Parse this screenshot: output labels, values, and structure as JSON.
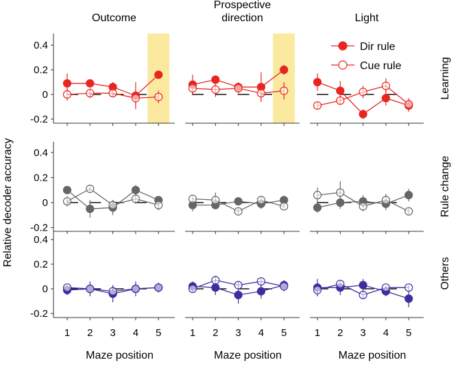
{
  "chart_data": {
    "type": "line",
    "ylabel": "Relative decoder accuracy",
    "xlabel": "Maze position",
    "x": [
      1,
      2,
      3,
      4,
      5
    ],
    "ylim": [
      -0.2,
      0.5
    ],
    "yticks": [
      "0.4",
      "0.2",
      "0",
      "-0.2"
    ],
    "ytick_values": [
      0.4,
      0.2,
      0,
      -0.2
    ],
    "xticks": [
      "1",
      "2",
      "3",
      "4",
      "5"
    ],
    "columns": [
      "Outcome",
      "Prospective direction",
      "Light"
    ],
    "column_title_lines": [
      [
        "Outcome"
      ],
      [
        "Prospective",
        "direction"
      ],
      [
        "Light"
      ]
    ],
    "rows": [
      {
        "label": "Learning",
        "color": "#e8251f"
      },
      {
        "label": "Rule change",
        "color": "#666666"
      },
      {
        "label": "Others",
        "color": "#3b2f9e"
      }
    ],
    "highlight": {
      "color": "#fbe9a0",
      "x": 5,
      "panels": [
        "Learning/Outcome",
        "Learning/Prospective direction"
      ]
    },
    "legend": {
      "placement": "top-right",
      "entries": [
        "Dir rule",
        "Cue rule"
      ]
    },
    "panels": [
      [
        {
          "dir": [
            0.09,
            0.09,
            0.06,
            -0.01,
            0.16
          ],
          "dir_err": [
            0.08,
            0.03,
            0.04,
            0.11,
            0.02
          ],
          "cue": [
            0,
            0.01,
            0.01,
            -0.03,
            -0.02
          ],
          "cue_err": [
            0.05,
            0.04,
            0.03,
            0.07,
            0.05
          ]
        },
        {
          "dir": [
            0.08,
            0.12,
            0.06,
            0.06,
            0.2
          ],
          "dir_err": [
            0.08,
            0.03,
            0.04,
            0.12,
            0.04
          ],
          "cue": [
            0.05,
            0.04,
            0.05,
            0.01,
            0.03
          ],
          "cue_err": [
            0.05,
            0.06,
            0.04,
            0.06,
            0.07
          ]
        },
        {
          "dir": [
            0.1,
            0.03,
            -0.16,
            -0.03,
            -0.09
          ],
          "dir_err": [
            0.07,
            0.08,
            0.04,
            0.06,
            0.05
          ],
          "cue": [
            -0.09,
            -0.05,
            0.02,
            0.07,
            -0.08
          ],
          "cue_err": [
            0.03,
            0.03,
            0.05,
            0.06,
            0.05
          ]
        }
      ],
      [
        {
          "dir": [
            0.1,
            -0.05,
            -0.04,
            0.1,
            0.02
          ],
          "dir_err": [
            0.03,
            0.07,
            0.06,
            0.04,
            0.03
          ],
          "cue": [
            0.01,
            0.11,
            -0.02,
            0.03,
            -0.02
          ],
          "cue_err": [
            0.04,
            0.02,
            0.04,
            0.04,
            0.04
          ]
        },
        {
          "dir": [
            -0.02,
            -0.02,
            0.01,
            -0.01,
            0.02
          ],
          "dir_err": [
            0.05,
            0.03,
            0.02,
            0.04,
            0.02
          ],
          "cue": [
            0.03,
            0.02,
            -0.07,
            0.02,
            -0.03
          ],
          "cue_err": [
            0.02,
            0.06,
            0.03,
            0.03,
            0.02
          ]
        },
        {
          "dir": [
            -0.04,
            0,
            0.01,
            -0.01,
            0.06
          ],
          "dir_err": [
            0.04,
            0.05,
            0.05,
            0.05,
            0.05
          ],
          "cue": [
            0.06,
            0.08,
            -0.03,
            0.02,
            -0.07
          ],
          "cue_err": [
            0.06,
            0.09,
            0.04,
            0.05,
            0.03
          ]
        }
      ],
      [
        {
          "dir": [
            -0.01,
            0,
            -0.04,
            0,
            0.01
          ],
          "dir_err": [
            0.04,
            0.06,
            0.07,
            0.06,
            0.04
          ],
          "cue": [
            0.01,
            0,
            -0.02,
            0,
            0.01
          ],
          "cue_err": [
            0.02,
            0.04,
            0.04,
            0.03,
            0.03
          ]
        },
        {
          "dir": [
            0.02,
            0.01,
            -0.05,
            -0.02,
            0.03
          ],
          "dir_err": [
            0.04,
            0.06,
            0.07,
            0.06,
            0.04
          ],
          "cue": [
            0,
            0.07,
            0.03,
            0.06,
            0.02
          ],
          "cue_err": [
            0.03,
            0.03,
            0.03,
            0.03,
            0.04
          ]
        },
        {
          "dir": [
            0.01,
            0.01,
            0.03,
            -0.02,
            -0.08
          ],
          "dir_err": [
            0.07,
            0.06,
            0.05,
            0.04,
            0.07
          ],
          "cue": [
            -0.01,
            0.04,
            -0.05,
            0.01,
            0.01
          ],
          "cue_err": [
            0.05,
            0.03,
            0.03,
            0.02,
            0.02
          ]
        }
      ]
    ]
  }
}
